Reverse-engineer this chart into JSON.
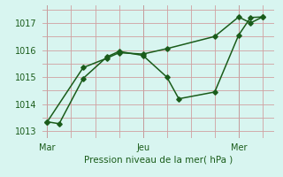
{
  "line1_x": [
    0,
    0.5,
    1.5,
    2.5,
    3.0,
    4.0,
    5.0,
    5.5,
    7.0,
    8.0,
    8.5,
    9.0
  ],
  "line1_y": [
    1013.35,
    1013.28,
    1014.95,
    1015.75,
    1015.95,
    1015.8,
    1015.0,
    1014.2,
    1014.45,
    1016.55,
    1017.2,
    1017.22
  ],
  "line2_x": [
    0,
    1.5,
    2.5,
    3.0,
    4.0,
    5.0,
    7.0,
    8.0,
    8.5,
    9.0
  ],
  "line2_y": [
    1013.35,
    1015.35,
    1015.7,
    1015.9,
    1015.85,
    1016.05,
    1016.5,
    1017.22,
    1017.0,
    1017.22
  ],
  "line_color": "#1a5c1a",
  "bg_color": "#d8f5f0",
  "grid_color": "#d0a0a0",
  "xlabel": "Pression niveau de la mer( hPa )",
  "xlabel_color": "#1a5c1a",
  "tick_color": "#1a5c1a",
  "ylim": [
    1012.75,
    1017.65
  ],
  "yticks": [
    1013,
    1014,
    1015,
    1016,
    1017
  ],
  "xtick_positions": [
    0,
    4.0,
    8.0
  ],
  "xtick_labels": [
    "Mar",
    "Jeu",
    "Mer"
  ],
  "vline_color": "#888888",
  "vline_positions": [
    0,
    4.0,
    8.0
  ],
  "xlim": [
    -0.2,
    9.5
  ]
}
